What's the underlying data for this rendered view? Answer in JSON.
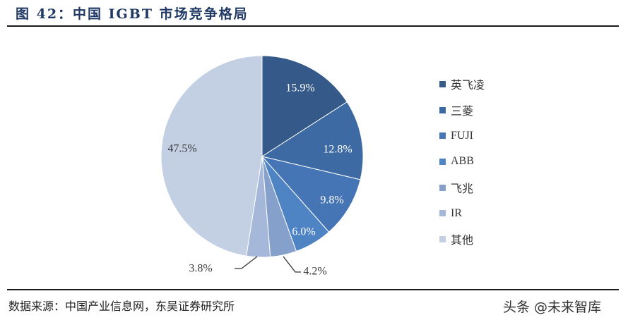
{
  "header": {
    "title": "图 42：中国 IGBT 市场竞争格局"
  },
  "footer": {
    "source": "数据来源：中国产业信息网，东吴证券研究所",
    "watermark": "头条 @未来智库"
  },
  "legend": {
    "items": [
      {
        "label": "英飞凌",
        "color": "#355a8a"
      },
      {
        "label": "三菱",
        "color": "#3d6aa3"
      },
      {
        "label": "FUJI",
        "color": "#4675b5"
      },
      {
        "label": "ABB",
        "color": "#4f84c4"
      },
      {
        "label": "飞兆",
        "color": "#86a0cc"
      },
      {
        "label": "IR",
        "color": "#a6b8da"
      },
      {
        "label": "其他",
        "color": "#c3cfe3"
      }
    ]
  },
  "chart_data": {
    "type": "pie",
    "title": "中国 IGBT 市场竞争格局",
    "categories": [
      "英飞凌",
      "三菱",
      "FUJI",
      "ABB",
      "飞兆",
      "IR",
      "其他"
    ],
    "values": [
      15.9,
      12.8,
      9.8,
      6.0,
      4.2,
      3.8,
      47.5
    ],
    "labels": [
      "15.9%",
      "12.8%",
      "9.8%",
      "6.0%",
      "4.2%",
      "3.8%",
      "47.5%"
    ],
    "colors": [
      "#355a8a",
      "#3d6aa3",
      "#4675b5",
      "#4f84c4",
      "#86a0cc",
      "#a6b8da",
      "#c3cfe3"
    ],
    "start_angle": "12 o'clock, clockwise",
    "legend_position": "right",
    "source": "中国产业信息网，东吴证券研究所"
  }
}
